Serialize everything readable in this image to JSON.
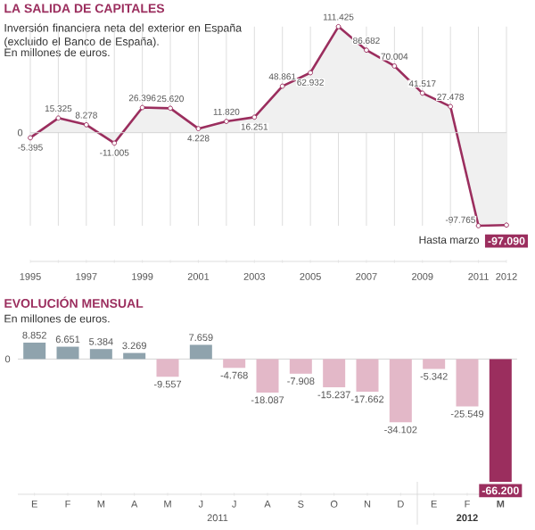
{
  "chart_data": [
    {
      "type": "area",
      "title": "LA SALIDA DE CAPITALES",
      "subtitle": "Inversión financiera neta del exterior en España (excluido el Banco de España).",
      "ylabel": "En millones de euros.",
      "x": [
        1995,
        1996,
        1997,
        1998,
        1999,
        2000,
        2001,
        2002,
        2003,
        2004,
        2005,
        2006,
        2007,
        2008,
        2009,
        2010,
        2011,
        2012
      ],
      "series": [
        {
          "color": "#9b2e5e",
          "values": [
            -5395,
            15325,
            8278,
            -11005,
            26396,
            25620,
            4228,
            11820,
            16251,
            48861,
            62932,
            111425,
            86682,
            70004,
            41517,
            27478,
            -97765,
            -97090
          ],
          "value_labels": [
            "-5.395",
            "15.325",
            "8.278",
            "-11.005",
            "26.396",
            "25.620",
            "4.228",
            "11.820",
            "16.251",
            "48.861",
            "62.932",
            "111.425",
            "86.682",
            "70.004",
            "41.517",
            "27.478",
            "-97.765",
            "-97.090"
          ]
        }
      ],
      "xlim": [
        1995,
        2012
      ],
      "xticks": [
        1995,
        {
          "value": 1996,
          "label": null
        },
        1997,
        {
          "value": 1998,
          "label": null
        },
        1999,
        {
          "value": 2000,
          "label": null
        },
        2001,
        {
          "value": 2002,
          "label": null
        },
        2003,
        {
          "value": 2004,
          "label": null
        },
        2005,
        {
          "value": 2006,
          "label": null
        },
        2007,
        {
          "value": 2008,
          "label": null
        },
        2009,
        {
          "value": 2010,
          "label": null
        },
        2011,
        2012
      ],
      "ref_lines": [
        {
          "axis": "y",
          "value": 0,
          "label": "0"
        }
      ],
      "grid": "x",
      "marker": "circle",
      "annotations": [
        {
          "text": "Hasta marzo",
          "x": 2012,
          "y": -97090
        }
      ]
    },
    {
      "type": "bar",
      "title": "EVOLUCIÓN MENSUAL",
      "ylabel": "En millones de euros.",
      "categories": [
        "E",
        "F",
        "M",
        "A",
        "M",
        "J",
        "J",
        "A",
        "S",
        "O",
        "N",
        "D",
        "E",
        "F",
        "M"
      ],
      "values": [
        8852,
        6651,
        5384,
        3269,
        -9557,
        7659,
        -4768,
        -18087,
        -7908,
        -15237,
        -17662,
        -34102,
        -5342,
        -25549,
        -66200
      ],
      "colors": [
        "#8fa3ad",
        "#8fa3ad",
        "#8fa3ad",
        "#8fa3ad",
        "#e3b8c8",
        "#8fa3ad",
        "#e3b8c8",
        "#e3b8c8",
        "#e3b8c8",
        "#e3b8c8",
        "#e3b8c8",
        "#e3b8c8",
        "#e3b8c8",
        "#e3b8c8",
        "#9b2e5e"
      ],
      "value_labels": [
        "8.852",
        "6.651",
        "5.384",
        "3.269",
        "-9.557",
        "7.659",
        "-4.768",
        "-18.087",
        "-7.908",
        "-15.237",
        "-17.662",
        "-34.102",
        "-5.342",
        "-25.549",
        "-66.200"
      ],
      "ref_lines": [
        {
          "axis": "y",
          "value": 0,
          "label": "0"
        }
      ],
      "annotations": [
        "2011",
        "2012"
      ]
    }
  ]
}
